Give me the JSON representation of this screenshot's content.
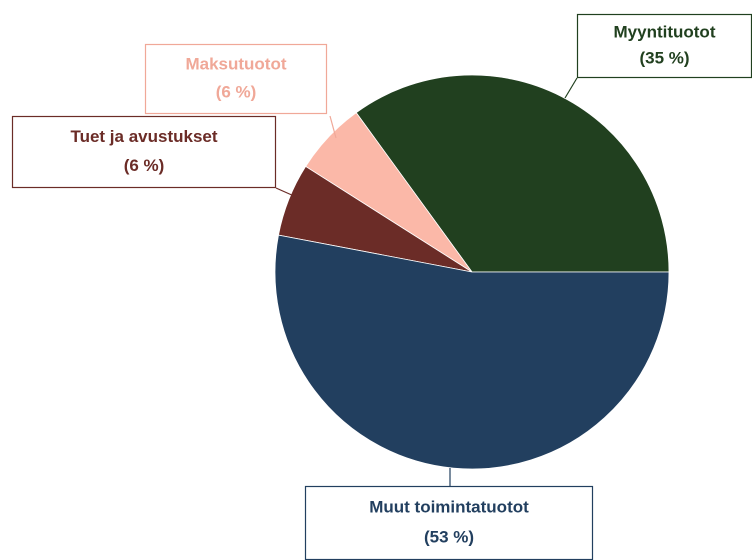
{
  "chart_data": {
    "type": "pie",
    "categories": [
      "Myyntituotot",
      "Maksutuotot",
      "Tuet ja avustukset",
      "Muut toimintatuotot"
    ],
    "values": [
      35,
      6,
      6,
      53
    ],
    "value_labels": [
      "(35 %)",
      "(6 %)",
      "(6 %)",
      "(53 %)"
    ],
    "colors": [
      "#21401f",
      "#fbb8a8",
      "#6b2c27",
      "#223f5f"
    ],
    "label_colors": [
      "#21401f",
      "#f0a898",
      "#6b2c27",
      "#223f5f"
    ]
  }
}
